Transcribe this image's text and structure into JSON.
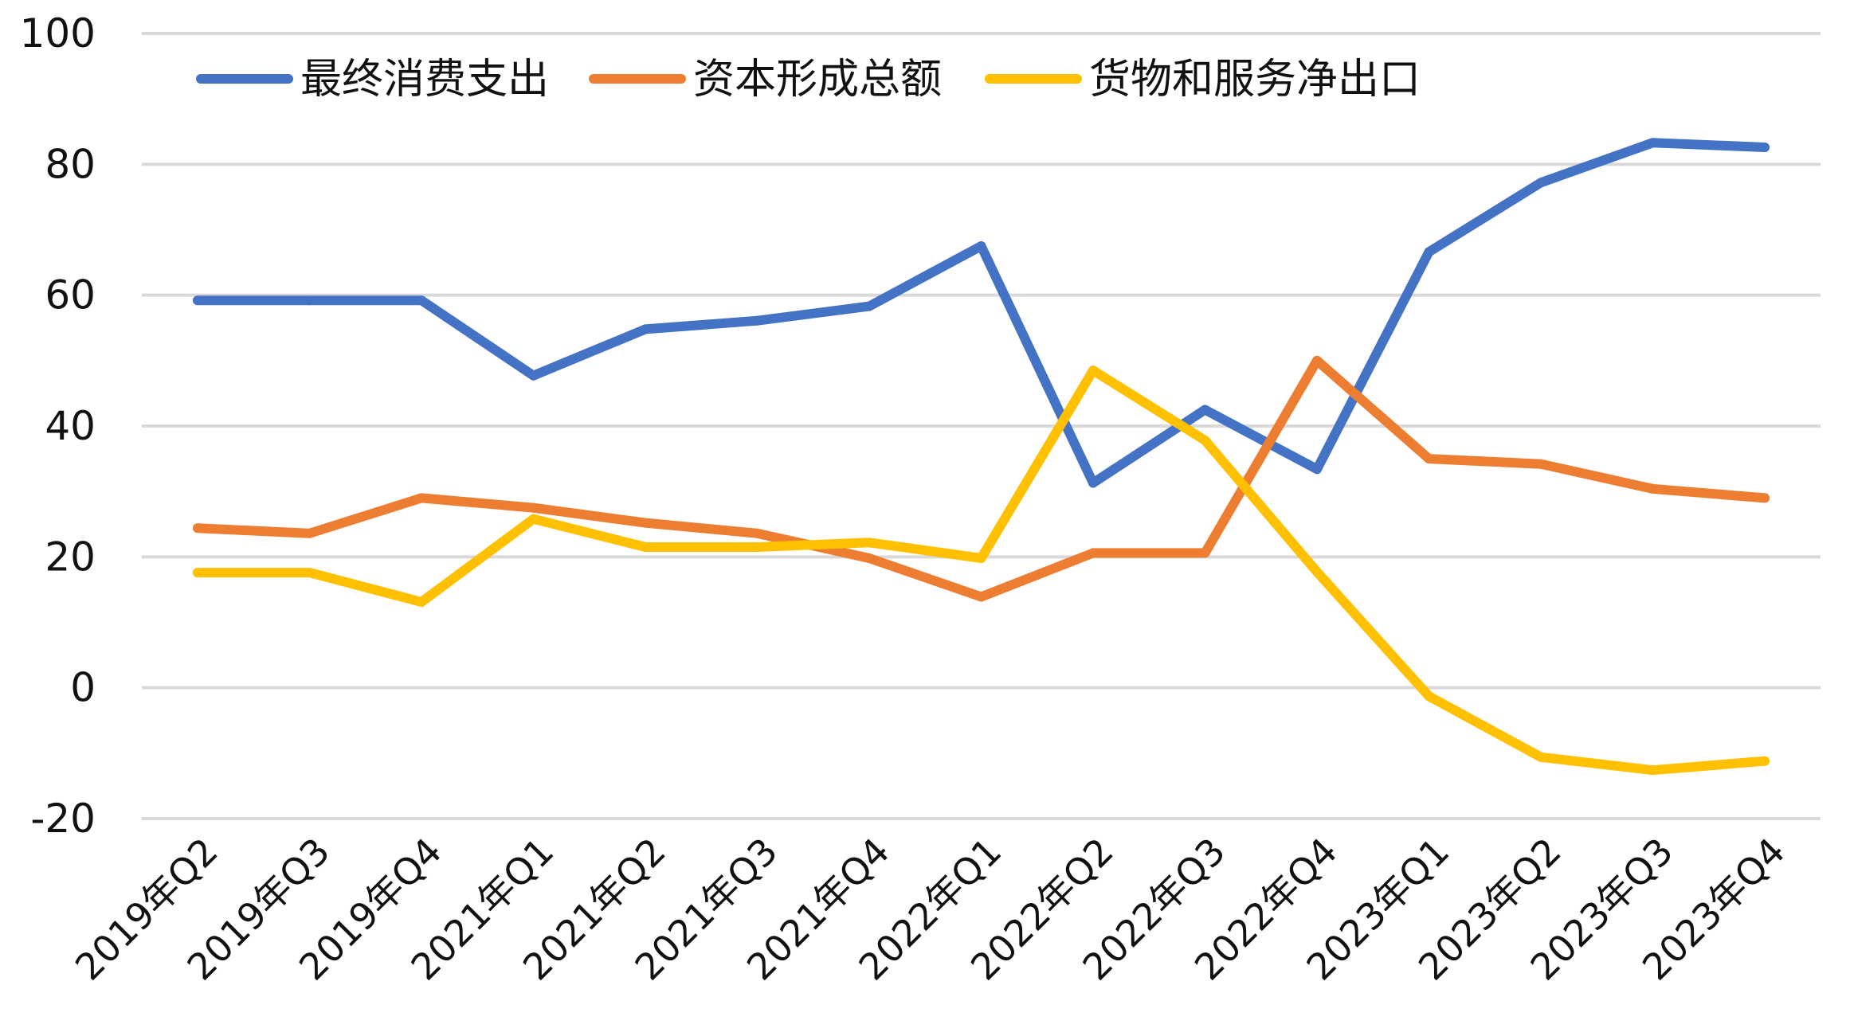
{
  "chart_data": {
    "type": "line",
    "title": "",
    "xlabel": "",
    "ylabel": "",
    "ylim": [
      -20,
      100
    ],
    "yticks": [
      -20,
      0,
      20,
      40,
      60,
      80,
      100
    ],
    "grid": true,
    "legend_position": "top-left",
    "categories": [
      "2019年Q2",
      "2019年Q3",
      "2019年Q4",
      "2021年Q1",
      "2021年Q2",
      "2021年Q3",
      "2021年Q4",
      "2022年Q1",
      "2022年Q2",
      "2022年Q3",
      "2022年Q4",
      "2023年Q1",
      "2023年Q2",
      "2023年Q3",
      "2023年Q4"
    ],
    "series": [
      {
        "name": "最终消费支出",
        "color": "#4472C4",
        "values": [
          59.2,
          59.2,
          59.2,
          47.7,
          54.8,
          56.1,
          58.3,
          67.5,
          31.3,
          42.5,
          33.4,
          66.6,
          77.2,
          83.3,
          82.6
        ]
      },
      {
        "name": "资本形成总额",
        "color": "#ED7D31",
        "values": [
          24.4,
          23.6,
          29.0,
          27.5,
          25.2,
          23.6,
          19.8,
          13.9,
          20.6,
          20.6,
          50.0,
          35.0,
          34.2,
          30.4,
          29.0
        ]
      },
      {
        "name": "货物和服务净出口",
        "color": "#FFC000",
        "values": [
          17.6,
          17.6,
          13.1,
          25.8,
          21.5,
          21.5,
          22.2,
          19.8,
          48.5,
          37.8,
          17.7,
          -1.3,
          -10.6,
          -12.6,
          -11.2
        ]
      }
    ]
  }
}
